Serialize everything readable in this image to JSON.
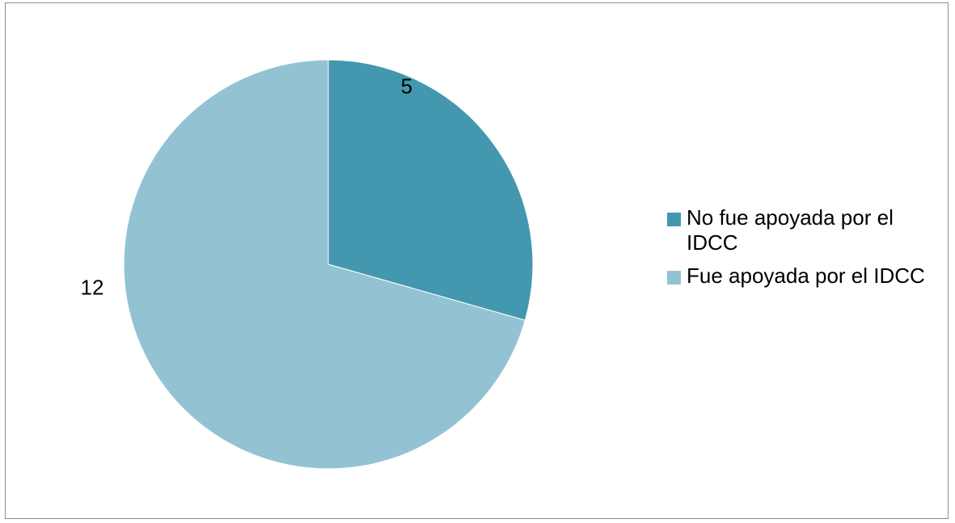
{
  "chart_data": {
    "type": "pie",
    "title": "",
    "categories": [
      "No fue apoyada por el IDCC",
      "Fue apoyada por el IDCC"
    ],
    "values": [
      5,
      12
    ],
    "data_labels": [
      "5",
      "12"
    ],
    "colors": [
      "#4398b0",
      "#93c3d3"
    ],
    "start_angle": "12 o'clock",
    "direction": "clockwise",
    "legend_position": "right"
  }
}
